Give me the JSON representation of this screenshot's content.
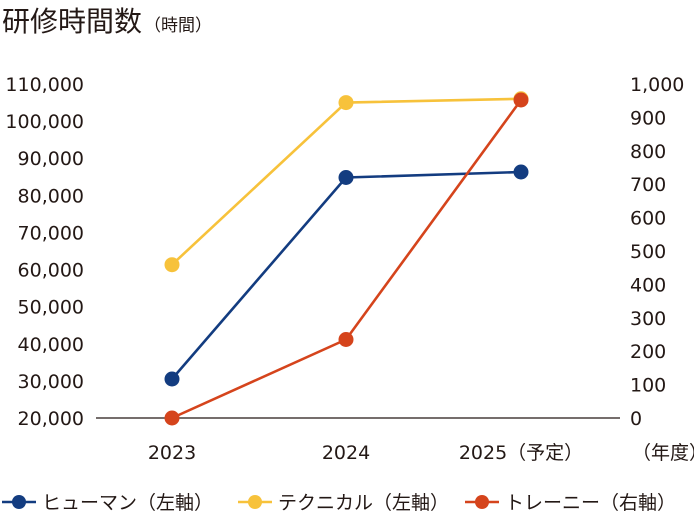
{
  "title": "研修時間数",
  "title_unit": "（時間）",
  "chart_data": {
    "type": "line",
    "title": "研修時間数",
    "x": [
      "2023",
      "2024",
      "2025（予定）"
    ],
    "x_unit": "（年度）",
    "y_left": {
      "ylim": [
        20000,
        110000
      ],
      "ticks": [
        20000,
        30000,
        40000,
        50000,
        60000,
        70000,
        80000,
        90000,
        100000,
        110000
      ],
      "tick_labels": [
        "20,000",
        "30,000",
        "40,000",
        "50,000",
        "60,000",
        "70,000",
        "80,000",
        "90,000",
        "100,000",
        "110,000"
      ]
    },
    "y_right": {
      "ylim": [
        0,
        1000
      ],
      "ticks": [
        0,
        100,
        200,
        300,
        400,
        500,
        600,
        700,
        800,
        900,
        1000
      ],
      "tick_labels": [
        "0",
        "100",
        "200",
        "300",
        "400",
        "500",
        "600",
        "700",
        "800",
        "900",
        "1,000"
      ]
    },
    "series": [
      {
        "name": "ヒューマン（左軸）",
        "axis": "left",
        "color": "#133c80",
        "values": [
          30500,
          84800,
          86300
        ]
      },
      {
        "name": "テクニカル（左軸）",
        "axis": "left",
        "color": "#f7c23b",
        "values": [
          61300,
          105000,
          106000
        ]
      },
      {
        "name": "トレーニー（右軸）",
        "axis": "right",
        "color": "#d5441c",
        "values": [
          0,
          235,
          952
        ]
      }
    ],
    "grid": false,
    "legend": "bottom"
  }
}
